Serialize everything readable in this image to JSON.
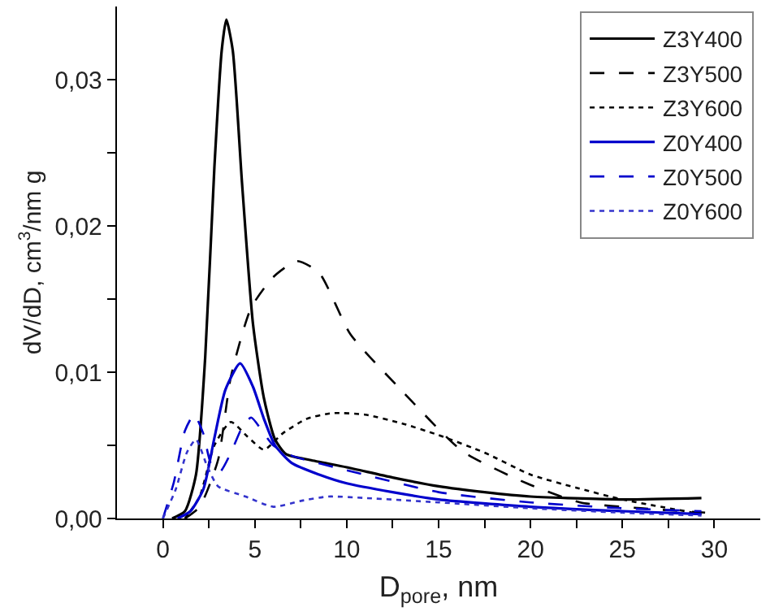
{
  "chart_data": {
    "type": "line",
    "xlabel": "D$_{pore}$, nm",
    "ylabel": "dV/dD, cm$^{3}$/nm g",
    "xlim": [
      -2.5,
      32.5
    ],
    "ylim": [
      0,
      0.035
    ],
    "xticks": [
      0,
      {
        "value": 2.5,
        "label": null
      },
      5,
      {
        "value": 7.5,
        "label": null
      },
      10,
      {
        "value": 12.5,
        "label": null
      },
      15,
      {
        "value": 17.5,
        "label": null
      },
      20,
      {
        "value": 22.5,
        "label": null
      },
      25,
      {
        "value": 27.5,
        "label": null
      },
      30
    ],
    "yticks": [
      {
        "value": 0,
        "label": "0,00"
      },
      {
        "value": 0.005,
        "label": null
      },
      {
        "value": 0.01,
        "label": "0,01"
      },
      {
        "value": 0.015,
        "label": null
      },
      {
        "value": 0.02,
        "label": "0,02"
      },
      {
        "value": 0.025,
        "label": null
      },
      {
        "value": 0.03,
        "label": "0,03"
      }
    ],
    "legend": "top right",
    "marker": "none",
    "series": [
      {
        "name": "Z3Y400",
        "color": "#000000",
        "line_style": "solid",
        "x": [
          0.5,
          1.2,
          1.8,
          2.3,
          2.8,
          3.2,
          3.45,
          3.8,
          4.3,
          4.9,
          5.5,
          6.1,
          6.7,
          8,
          10,
          12.5,
          15,
          17.5,
          20,
          25,
          29.3
        ],
        "values": [
          0,
          0.0005,
          0.003,
          0.011,
          0.024,
          0.032,
          0.0341,
          0.032,
          0.023,
          0.0133,
          0.0082,
          0.0054,
          0.0044,
          0.004,
          0.0035,
          0.0028,
          0.0022,
          0.0018,
          0.0015,
          0.0013,
          0.0014
        ]
      },
      {
        "name": "Z3Y500",
        "color": "#000000",
        "line_style": "dashed",
        "x": [
          1.2,
          2,
          3,
          3.7,
          4.8,
          6,
          7.3,
          8.5,
          10.2,
          12.8,
          16.3,
          19.8,
          22.7,
          26,
          29.5
        ],
        "values": [
          0,
          0.0008,
          0.004,
          0.0097,
          0.0144,
          0.0165,
          0.0176,
          0.0168,
          0.0126,
          0.009,
          0.0046,
          0.0024,
          0.0011,
          0.0007,
          0.0004
        ]
      },
      {
        "name": "Z3Y600",
        "color": "#000000",
        "line_style": "dotted",
        "x": [
          1.2,
          2,
          2.8,
          3.7,
          4.6,
          5.5,
          6.5,
          7.8,
          9.2,
          11,
          13,
          15,
          17.5,
          20,
          22.5,
          25,
          29.3
        ],
        "values": [
          0,
          0.0015,
          0.005,
          0.0066,
          0.0056,
          0.0047,
          0.0058,
          0.0068,
          0.0072,
          0.0071,
          0.0065,
          0.0057,
          0.0045,
          0.003,
          0.0021,
          0.0013,
          0.0003
        ]
      },
      {
        "name": "Z0Y400",
        "color": "#0000cc",
        "line_style": "solid",
        "x": [
          0.8,
          1.5,
          2.2,
          2.8,
          3.4,
          4.2,
          4.9,
          5.5,
          6.1,
          7,
          8.5,
          10,
          12.5,
          15,
          20,
          25,
          29.3
        ],
        "values": [
          0,
          0.0005,
          0.002,
          0.0055,
          0.0088,
          0.0106,
          0.009,
          0.0068,
          0.005,
          0.0038,
          0.003,
          0.0024,
          0.0018,
          0.0013,
          0.0008,
          0.0005,
          0.0003
        ]
      },
      {
        "name": "Z0Y500",
        "color": "#0000cc",
        "line_style": "dashed",
        "x": [
          0,
          0.6,
          1.2,
          1.7,
          2.2,
          2.6,
          3.1,
          3.7,
          4.3,
          4.8,
          5.5,
          6,
          7,
          10,
          15,
          20,
          25,
          29.3
        ],
        "values": [
          0,
          0.0025,
          0.006,
          0.0071,
          0.0058,
          0.0038,
          0.0032,
          0.0045,
          0.0062,
          0.0069,
          0.0058,
          0.005,
          0.0043,
          0.0033,
          0.0018,
          0.0011,
          0.0007,
          0.0005
        ]
      },
      {
        "name": "Z0Y600",
        "color": "#3333cc",
        "line_style": "dotted",
        "x": [
          0,
          0.7,
          1.3,
          1.8,
          2.4,
          3,
          4.5,
          6,
          7.5,
          9,
          11,
          15,
          20,
          25,
          29.3
        ],
        "values": [
          0,
          0.002,
          0.0045,
          0.0054,
          0.0036,
          0.0022,
          0.0015,
          0.0008,
          0.0012,
          0.0015,
          0.0014,
          0.0011,
          0.0007,
          0.0004,
          0.0002
        ]
      }
    ]
  }
}
